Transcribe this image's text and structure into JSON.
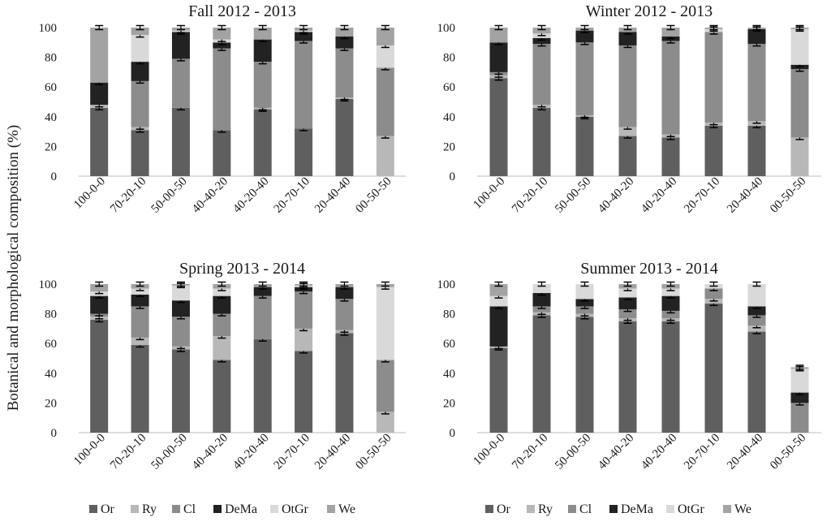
{
  "figure": {
    "ylabel": "Botanical and morphological composition (%)"
  },
  "legend": [
    {
      "key": "Or",
      "label": "Or",
      "color": "#5f5f5f"
    },
    {
      "key": "Ry",
      "label": "Ry",
      "color": "#b8b8b8"
    },
    {
      "key": "Cl",
      "label": "Cl",
      "color": "#8c8c8c"
    },
    {
      "key": "DeMa",
      "label": "DeMa",
      "color": "#222222"
    },
    {
      "key": "OtGr",
      "label": "OtGr",
      "color": "#d9d9d9"
    },
    {
      "key": "We",
      "label": "We",
      "color": "#a3a3a3"
    }
  ],
  "chart_data": [
    {
      "type": "bar",
      "stacked": true,
      "title": "Fall 2012 - 2013",
      "categories": [
        "100-0-0",
        "70-20-10",
        "50-00-50",
        "40-40-20",
        "40-20-40",
        "20-70-10",
        "20-40-40",
        "00-50-50"
      ],
      "ylim": [
        0,
        100
      ],
      "yticks": [
        0,
        20,
        40,
        60,
        80,
        100
      ],
      "grid": false,
      "series": [
        {
          "name": "Or",
          "values": [
            46,
            31,
            46,
            31,
            45,
            32,
            52,
            0
          ]
        },
        {
          "name": "Ry",
          "values": [
            2,
            2,
            0,
            0,
            1,
            0,
            1,
            27
          ]
        },
        {
          "name": "Cl",
          "values": [
            0,
            31,
            33,
            55,
            31,
            59,
            33,
            46
          ]
        },
        {
          "name": "DeMa",
          "values": [
            15,
            13,
            18,
            4,
            15,
            6,
            8,
            0
          ]
        },
        {
          "name": "OtGr",
          "values": [
            0,
            18,
            1,
            2,
            0,
            1,
            0,
            15
          ]
        },
        {
          "name": "We",
          "values": [
            37,
            5,
            2,
            8,
            8,
            2,
            6,
            12
          ]
        }
      ]
    },
    {
      "type": "bar",
      "stacked": true,
      "title": "Winter 2012 - 2013",
      "categories": [
        "100-0-0",
        "70-20-10",
        "50-00-50",
        "40-40-20",
        "40-20-40",
        "20-70-10",
        "20-40-40",
        "00-50-50"
      ],
      "ylim": [
        0,
        100
      ],
      "yticks": [
        0,
        20,
        40,
        60,
        80,
        100
      ],
      "grid": false,
      "series": [
        {
          "name": "Or",
          "values": [
            66,
            46,
            40,
            27,
            26,
            34,
            34,
            0
          ]
        },
        {
          "name": "Ry",
          "values": [
            2,
            2,
            1,
            6,
            2,
            2,
            3,
            26
          ]
        },
        {
          "name": "Cl",
          "values": [
            2,
            41,
            49,
            55,
            63,
            61,
            52,
            46
          ]
        },
        {
          "name": "DeMa",
          "values": [
            20,
            4,
            8,
            9,
            3,
            0,
            10,
            3
          ]
        },
        {
          "name": "OtGr",
          "values": [
            0,
            3,
            0,
            0,
            0,
            2,
            0,
            24
          ]
        },
        {
          "name": "We",
          "values": [
            10,
            4,
            2,
            3,
            6,
            1,
            1,
            1
          ]
        }
      ]
    },
    {
      "type": "bar",
      "stacked": true,
      "title": "Spring 2013 - 2014",
      "categories": [
        "100-0-0",
        "70-20-10",
        "50-00-50",
        "40-40-20",
        "40-20-40",
        "20-70-10",
        "20-40-40",
        "00-50-50"
      ],
      "ylim": [
        0,
        100
      ],
      "yticks": [
        0,
        20,
        40,
        60,
        80,
        100
      ],
      "grid": false,
      "series": [
        {
          "name": "Or",
          "values": [
            76,
            59,
            56,
            49,
            63,
            55,
            67,
            0
          ]
        },
        {
          "name": "Ry",
          "values": [
            2,
            5,
            2,
            16,
            0,
            15,
            2,
            14
          ]
        },
        {
          "name": "Cl",
          "values": [
            2,
            21,
            20,
            15,
            29,
            25,
            21,
            35
          ]
        },
        {
          "name": "DeMa",
          "values": [
            12,
            8,
            11,
            12,
            6,
            3,
            8,
            0
          ]
        },
        {
          "name": "OtGr",
          "values": [
            3,
            4,
            10,
            5,
            0,
            1,
            0,
            49
          ]
        },
        {
          "name": "We",
          "values": [
            5,
            3,
            1,
            3,
            2,
            1,
            2,
            2
          ]
        }
      ]
    },
    {
      "type": "bar",
      "stacked": true,
      "title": "Summer 2013 - 2014",
      "categories": [
        "100-0-0",
        "70-20-10",
        "50-00-50",
        "40-40-20",
        "40-20-40",
        "20-70-10",
        "20-40-40",
        "00-50-50"
      ],
      "ylim": [
        0,
        100
      ],
      "yticks": [
        0,
        20,
        40,
        60,
        80,
        100
      ],
      "grid": false,
      "series": [
        {
          "name": "Or",
          "values": [
            57,
            79,
            78,
            75,
            75,
            87,
            68,
            0
          ]
        },
        {
          "name": "Ry",
          "values": [
            1,
            2,
            2,
            2,
            2,
            3,
            4,
            0
          ]
        },
        {
          "name": "Cl",
          "values": [
            0,
            4,
            5,
            6,
            5,
            7,
            7,
            20
          ]
        },
        {
          "name": "DeMa",
          "values": [
            27,
            9,
            5,
            8,
            10,
            0,
            6,
            7
          ]
        },
        {
          "name": "OtGr",
          "values": [
            7,
            6,
            10,
            6,
            5,
            3,
            15,
            16
          ]
        },
        {
          "name": "We",
          "values": [
            8,
            0,
            0,
            3,
            3,
            0,
            0,
            1
          ]
        }
      ]
    }
  ]
}
